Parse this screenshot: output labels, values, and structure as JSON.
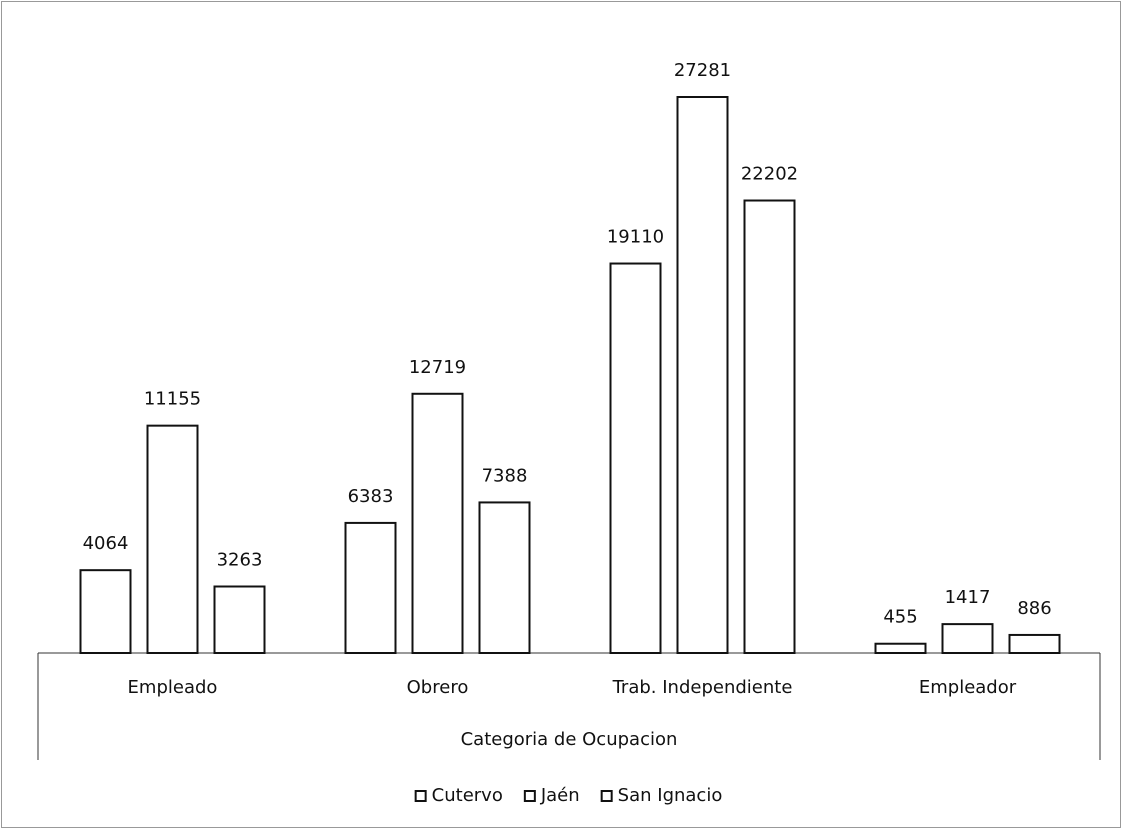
{
  "chart_data": {
    "type": "bar",
    "categories": [
      "Empleado",
      "Obrero",
      "Trab. Independiente",
      "Empleador"
    ],
    "x_label": "Categoria de Ocupacion",
    "series": [
      {
        "name": "Cutervo",
        "color": "#ffffff",
        "values": [
          4064,
          6383,
          19110,
          455
        ]
      },
      {
        "name": "Jaén",
        "color": "#ffffff",
        "values": [
          11155,
          12719,
          27281,
          1417
        ]
      },
      {
        "name": "San Ignacio",
        "color": "#ffffff",
        "values": [
          3263,
          7388,
          22202,
          886
        ]
      }
    ],
    "legend": "bottom"
  }
}
